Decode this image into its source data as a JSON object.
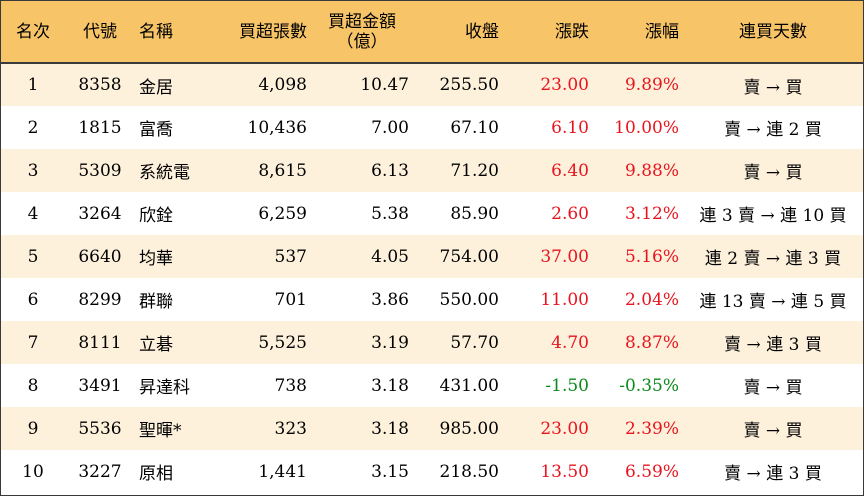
{
  "headers": {
    "rank": "名次",
    "code": "代號",
    "name": "名稱",
    "net_buy_lots": "買超張數",
    "net_buy_amount_line1": "買超金額",
    "net_buy_amount_line2": "（億）",
    "close": "收盤",
    "change": "漲跌",
    "change_pct": "漲幅",
    "streak": "連買天數"
  },
  "rows": [
    {
      "rank": "1",
      "code": "8358",
      "name": "金居",
      "lots": "4,098",
      "amount": "10.47",
      "close": "255.50",
      "change": "23.00",
      "pct": "9.89%",
      "streak": "賣 → 買",
      "dir": "up"
    },
    {
      "rank": "2",
      "code": "1815",
      "name": "富喬",
      "lots": "10,436",
      "amount": "7.00",
      "close": "67.10",
      "change": "6.10",
      "pct": "10.00%",
      "streak": "賣 → 連 2 買",
      "dir": "up"
    },
    {
      "rank": "3",
      "code": "5309",
      "name": "系統電",
      "lots": "8,615",
      "amount": "6.13",
      "close": "71.20",
      "change": "6.40",
      "pct": "9.88%",
      "streak": "賣 → 買",
      "dir": "up"
    },
    {
      "rank": "4",
      "code": "3264",
      "name": "欣銓",
      "lots": "6,259",
      "amount": "5.38",
      "close": "85.90",
      "change": "2.60",
      "pct": "3.12%",
      "streak": "連 3 賣 → 連 10 買",
      "dir": "up"
    },
    {
      "rank": "5",
      "code": "6640",
      "name": "均華",
      "lots": "537",
      "amount": "4.05",
      "close": "754.00",
      "change": "37.00",
      "pct": "5.16%",
      "streak": "連 2 賣 → 連 3 買",
      "dir": "up"
    },
    {
      "rank": "6",
      "code": "8299",
      "name": "群聯",
      "lots": "701",
      "amount": "3.86",
      "close": "550.00",
      "change": "11.00",
      "pct": "2.04%",
      "streak": "連 13 賣 → 連 5 買",
      "dir": "up"
    },
    {
      "rank": "7",
      "code": "8111",
      "name": "立碁",
      "lots": "5,525",
      "amount": "3.19",
      "close": "57.70",
      "change": "4.70",
      "pct": "8.87%",
      "streak": "賣 → 連 3 買",
      "dir": "up"
    },
    {
      "rank": "8",
      "code": "3491",
      "name": "昇達科",
      "lots": "738",
      "amount": "3.18",
      "close": "431.00",
      "change": "-1.50",
      "pct": "-0.35%",
      "streak": "賣 → 買",
      "dir": "down"
    },
    {
      "rank": "9",
      "code": "5536",
      "name": "聖暉*",
      "lots": "323",
      "amount": "3.18",
      "close": "985.00",
      "change": "23.00",
      "pct": "2.39%",
      "streak": "賣 → 買",
      "dir": "up"
    },
    {
      "rank": "10",
      "code": "3227",
      "name": "原相",
      "lots": "1,441",
      "amount": "3.15",
      "close": "218.50",
      "change": "13.50",
      "pct": "6.59%",
      "streak": "賣 → 連 3 買",
      "dir": "up"
    }
  ],
  "colors": {
    "header_bg": "#f7c468",
    "stripe_bg": "#fdf1dc",
    "up": "#e8141e",
    "down": "#0b8a1c"
  }
}
